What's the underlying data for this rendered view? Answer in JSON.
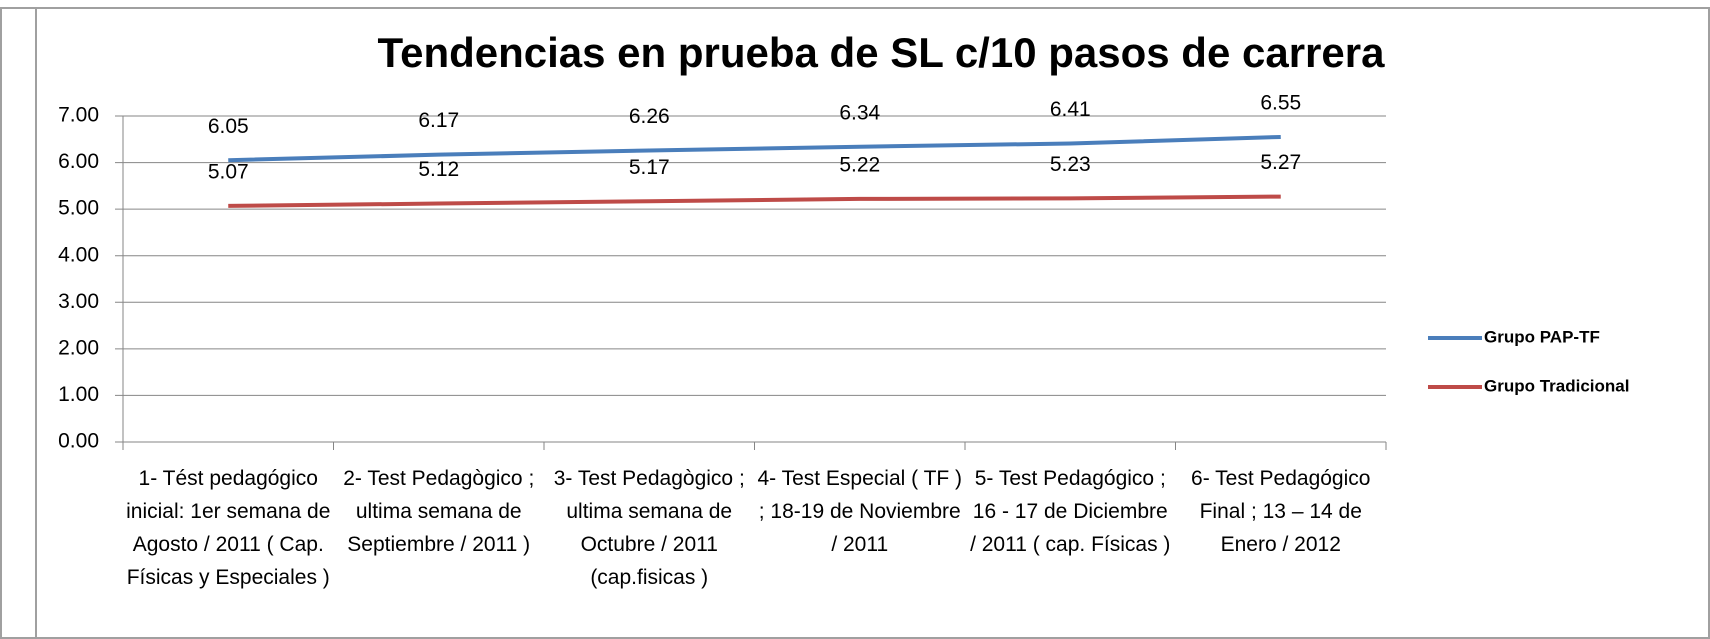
{
  "chart_data": {
    "type": "line",
    "title": "Tendencias en prueba de SL c/10 pasos de carrera",
    "categories": [
      "1- Tést pedagógico inicial: 1er semana de Agosto / 2011 ( Cap. Físicas y Especiales )",
      "2- Test Pedagògico ; ultima semana de Septiembre / 2011 )",
      "3- Test Pedagògico ; ultima semana de Octubre / 2011 (cap.fisicas )",
      "4- Test Especial ( TF ) ; 18-19 de Noviembre / 2011",
      "5- Test Pedagógico ; 16 - 17 de Diciembre / 2011 ( cap. Físicas )",
      "6- Test Pedagógico Final ; 13 – 14 de Enero / 2012"
    ],
    "series": [
      {
        "name": "Grupo PAP-TF",
        "color": "#4a7ebb",
        "values": [
          6.05,
          6.17,
          6.26,
          6.34,
          6.41,
          6.55
        ]
      },
      {
        "name": "Grupo Tradicional",
        "color": "#be4b48",
        "values": [
          5.07,
          5.12,
          5.17,
          5.22,
          5.23,
          5.27
        ]
      }
    ],
    "ylim": [
      0,
      7
    ],
    "yticks": [
      {
        "value": 0,
        "label": "0.00"
      },
      {
        "value": 1,
        "label": "1.00"
      },
      {
        "value": 2,
        "label": "2.00"
      },
      {
        "value": 3,
        "label": "3.00"
      },
      {
        "value": 4,
        "label": "4.00"
      },
      {
        "value": 5,
        "label": "5.00"
      },
      {
        "value": 6,
        "label": "6.00"
      },
      {
        "value": 7,
        "label": "7.00"
      }
    ],
    "grid": true,
    "legend": "right"
  }
}
